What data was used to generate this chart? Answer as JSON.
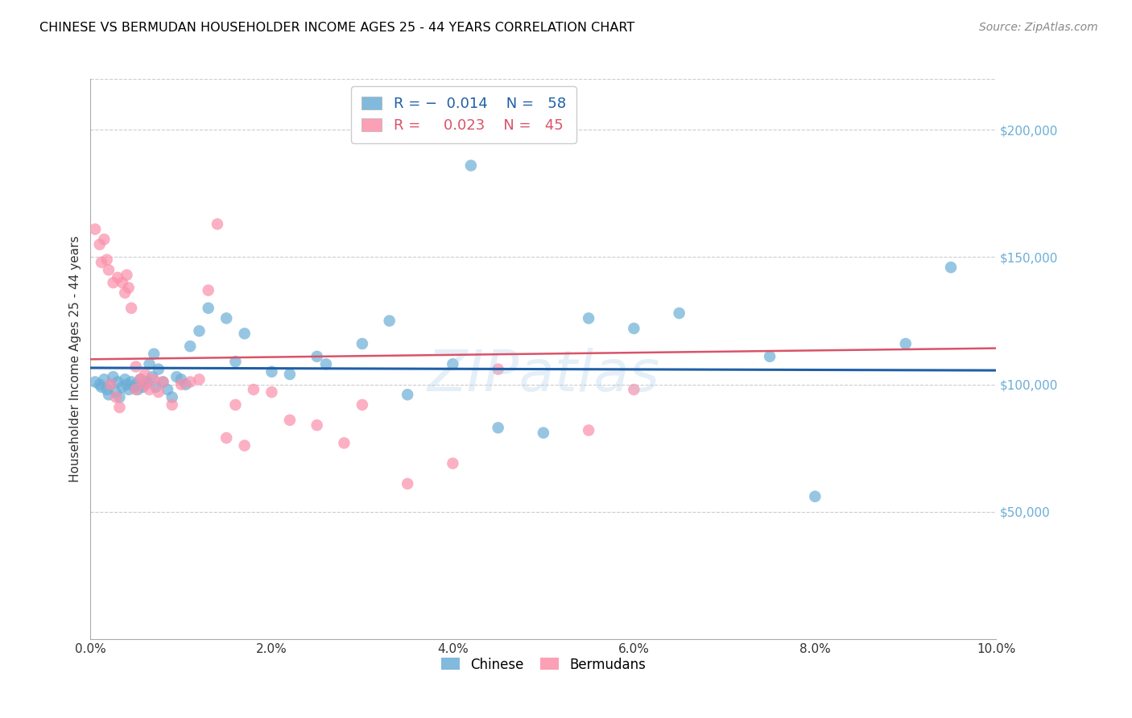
{
  "title": "CHINESE VS BERMUDAN HOUSEHOLDER INCOME AGES 25 - 44 YEARS CORRELATION CHART",
  "source": "Source: ZipAtlas.com",
  "ylabel": "Householder Income Ages 25 - 44 years",
  "xlabel_vals": [
    0.0,
    2.0,
    4.0,
    6.0,
    8.0,
    10.0
  ],
  "ylim": [
    0,
    220000
  ],
  "xlim": [
    0.0,
    10.0
  ],
  "ytick_labels": [
    "$50,000",
    "$100,000",
    "$150,000",
    "$200,000"
  ],
  "ytick_vals": [
    50000,
    100000,
    150000,
    200000
  ],
  "legend_label1": "Chinese",
  "legend_label2": "Bermudans",
  "R_chinese": -0.014,
  "N_chinese": 58,
  "R_bermudan": 0.023,
  "N_bermudan": 45,
  "color_chinese": "#6baed6",
  "color_bermudan": "#fc8faa",
  "color_line_chinese": "#1f5fa6",
  "color_line_bermudan": "#d9536a",
  "chinese_x": [
    0.05,
    0.1,
    0.12,
    0.15,
    0.18,
    0.2,
    0.22,
    0.25,
    0.28,
    0.3,
    0.32,
    0.35,
    0.38,
    0.4,
    0.42,
    0.45,
    0.48,
    0.5,
    0.52,
    0.55,
    0.58,
    0.6,
    0.62,
    0.65,
    0.68,
    0.7,
    0.72,
    0.75,
    0.8,
    0.85,
    0.9,
    0.95,
    1.0,
    1.05,
    1.1,
    1.2,
    1.3,
    1.5,
    1.6,
    1.7,
    2.0,
    2.2,
    2.5,
    2.6,
    3.0,
    3.3,
    3.5,
    4.0,
    4.2,
    4.5,
    5.0,
    5.5,
    6.0,
    6.5,
    7.5,
    8.0,
    9.0,
    9.5
  ],
  "chinese_y": [
    101000,
    100000,
    99000,
    102000,
    98000,
    96000,
    100000,
    103000,
    97000,
    101000,
    95000,
    99000,
    102000,
    100000,
    98000,
    101000,
    99000,
    100000,
    98000,
    102000,
    99000,
    100000,
    101000,
    108000,
    103000,
    112000,
    99000,
    106000,
    101000,
    98000,
    95000,
    103000,
    102000,
    100000,
    115000,
    121000,
    130000,
    126000,
    109000,
    120000,
    105000,
    104000,
    111000,
    108000,
    116000,
    125000,
    96000,
    108000,
    186000,
    83000,
    81000,
    126000,
    122000,
    128000,
    111000,
    56000,
    116000,
    146000
  ],
  "bermudan_x": [
    0.05,
    0.1,
    0.12,
    0.15,
    0.18,
    0.2,
    0.25,
    0.3,
    0.35,
    0.38,
    0.4,
    0.42,
    0.45,
    0.5,
    0.55,
    0.6,
    0.65,
    0.7,
    0.75,
    0.8,
    0.9,
    1.0,
    1.1,
    1.2,
    1.3,
    1.5,
    1.6,
    1.7,
    1.8,
    2.0,
    2.2,
    2.5,
    3.0,
    3.5,
    4.0,
    4.5,
    5.5,
    6.0,
    2.8,
    1.4,
    0.6,
    0.5,
    0.22,
    0.28,
    0.32
  ],
  "bermudan_y": [
    161000,
    155000,
    148000,
    157000,
    149000,
    145000,
    140000,
    142000,
    140000,
    136000,
    143000,
    138000,
    130000,
    107000,
    102000,
    100000,
    98000,
    102000,
    97000,
    101000,
    92000,
    100000,
    101000,
    102000,
    137000,
    79000,
    92000,
    76000,
    98000,
    97000,
    86000,
    84000,
    92000,
    61000,
    69000,
    106000,
    82000,
    98000,
    77000,
    163000,
    104000,
    98000,
    100000,
    95000,
    91000
  ]
}
